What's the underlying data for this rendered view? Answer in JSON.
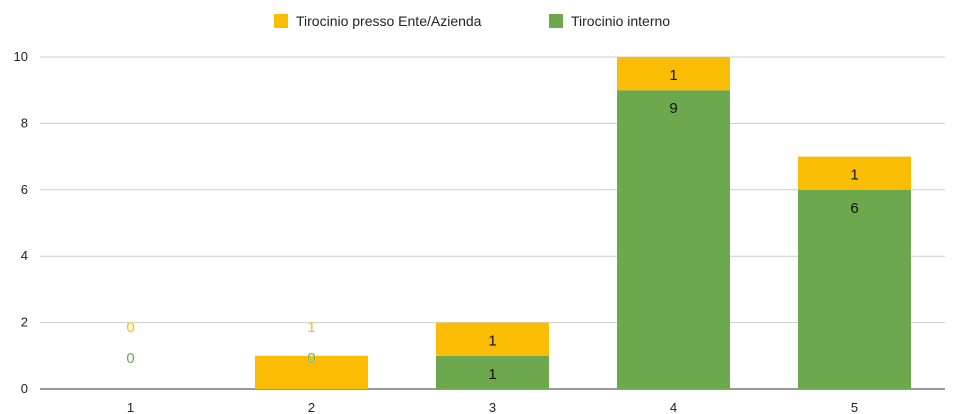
{
  "chart_data": {
    "type": "bar",
    "stacked": true,
    "categories": [
      "1",
      "2",
      "3",
      "4",
      "5"
    ],
    "series": [
      {
        "name": "Tirocinio interno",
        "color": "#6ea84e",
        "values": [
          0,
          0,
          1,
          9,
          6
        ]
      },
      {
        "name": "Tirocinio presso Ente/Azienda",
        "color": "#fbbc04",
        "values": [
          0,
          1,
          1,
          1,
          1
        ]
      }
    ],
    "legend_order": [
      1,
      0
    ],
    "legend_position": "top-center",
    "ylim": [
      0,
      10
    ],
    "yticks": [
      "0",
      "2",
      "4",
      "6",
      "8",
      "10"
    ],
    "grid": true,
    "data_labels": true
  }
}
